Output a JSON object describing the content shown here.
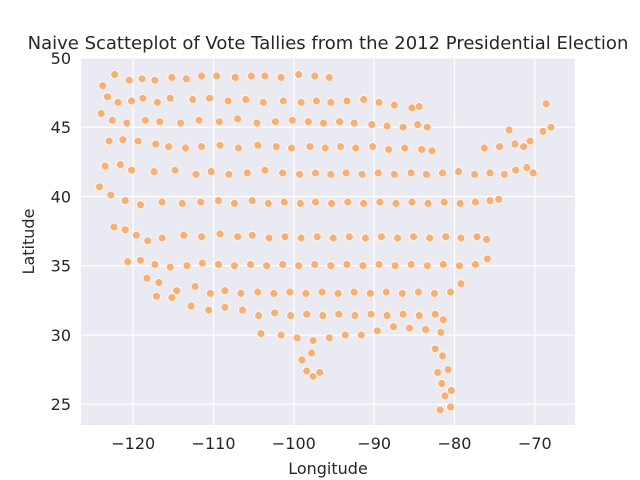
{
  "chart_data": {
    "type": "scatter",
    "title": "Naive Scatteplot of Vote Tallies from the 2012 Presidential Election",
    "xlabel": "Longitude",
    "ylabel": "Latitude",
    "xlim": [
      -126.5,
      -65.0
    ],
    "ylim": [
      23.5,
      50.0
    ],
    "xticks": [
      -120,
      -110,
      -100,
      -90,
      -80,
      -70
    ],
    "xtick_labels": [
      "−120",
      "−110",
      "−100",
      "−90",
      "−80",
      "−70"
    ],
    "yticks": [
      25,
      30,
      35,
      40,
      45,
      50
    ],
    "ytick_labels": [
      "25",
      "30",
      "35",
      "40",
      "45",
      "50"
    ],
    "grid": true,
    "style": "seaborn-darkgrid",
    "colors": {
      "background": "#eaeaf2",
      "grid": "#ffffff",
      "marker": "#fdae6b",
      "marker_edge": "#ffffff"
    },
    "series": [
      {
        "values": [
          [
            -123.8,
            48.0
          ],
          [
            -122.3,
            48.8
          ],
          [
            -120.5,
            48.4
          ],
          [
            -118.9,
            48.5
          ],
          [
            -117.3,
            48.4
          ],
          [
            -115.2,
            48.6
          ],
          [
            -113.4,
            48.5
          ],
          [
            -111.5,
            48.7
          ],
          [
            -109.6,
            48.7
          ],
          [
            -107.3,
            48.6
          ],
          [
            -105.3,
            48.7
          ],
          [
            -103.6,
            48.7
          ],
          [
            -101.6,
            48.6
          ],
          [
            -99.4,
            48.8
          ],
          [
            -97.4,
            48.7
          ],
          [
            -95.6,
            48.6
          ],
          [
            -123.2,
            47.2
          ],
          [
            -121.9,
            46.8
          ],
          [
            -120.2,
            46.9
          ],
          [
            -118.8,
            47.1
          ],
          [
            -117.0,
            46.8
          ],
          [
            -115.4,
            47.1
          ],
          [
            -112.6,
            47.0
          ],
          [
            -110.5,
            47.1
          ],
          [
            -108.2,
            46.9
          ],
          [
            -106.0,
            47.0
          ],
          [
            -103.8,
            46.8
          ],
          [
            -101.3,
            46.9
          ],
          [
            -99.1,
            46.8
          ],
          [
            -97.2,
            46.9
          ],
          [
            -95.4,
            46.8
          ],
          [
            -93.4,
            46.9
          ],
          [
            -91.3,
            47.0
          ],
          [
            -89.4,
            46.8
          ],
          [
            -87.5,
            46.6
          ],
          [
            -85.3,
            46.4
          ],
          [
            -84.4,
            46.5
          ],
          [
            -124.0,
            46.0
          ],
          [
            -122.6,
            45.5
          ],
          [
            -120.8,
            45.3
          ],
          [
            -118.5,
            45.5
          ],
          [
            -116.7,
            45.4
          ],
          [
            -114.1,
            45.3
          ],
          [
            -111.8,
            45.5
          ],
          [
            -109.3,
            45.4
          ],
          [
            -107.0,
            45.6
          ],
          [
            -104.6,
            45.3
          ],
          [
            -102.3,
            45.4
          ],
          [
            -100.2,
            45.5
          ],
          [
            -98.2,
            45.4
          ],
          [
            -96.3,
            45.3
          ],
          [
            -94.3,
            45.4
          ],
          [
            -92.5,
            45.3
          ],
          [
            -90.3,
            45.2
          ],
          [
            -88.4,
            45.1
          ],
          [
            -86.4,
            45.0
          ],
          [
            -84.6,
            45.2
          ],
          [
            -83.4,
            45.0
          ],
          [
            -123.0,
            44.0
          ],
          [
            -121.3,
            44.1
          ],
          [
            -119.4,
            44.0
          ],
          [
            -117.2,
            43.8
          ],
          [
            -115.6,
            43.6
          ],
          [
            -113.5,
            43.5
          ],
          [
            -111.5,
            43.6
          ],
          [
            -109.2,
            43.7
          ],
          [
            -106.9,
            43.5
          ],
          [
            -104.5,
            43.7
          ],
          [
            -102.2,
            43.6
          ],
          [
            -100.3,
            43.5
          ],
          [
            -98.0,
            43.6
          ],
          [
            -96.1,
            43.5
          ],
          [
            -94.2,
            43.6
          ],
          [
            -92.3,
            43.5
          ],
          [
            -90.2,
            43.6
          ],
          [
            -88.2,
            43.4
          ],
          [
            -86.2,
            43.5
          ],
          [
            -84.1,
            43.4
          ],
          [
            -82.8,
            43.3
          ],
          [
            -76.3,
            43.5
          ],
          [
            -74.4,
            43.6
          ],
          [
            -72.5,
            43.8
          ],
          [
            -70.6,
            44.0
          ],
          [
            -69.0,
            44.7
          ],
          [
            -68.0,
            45.0
          ],
          [
            -68.6,
            46.7
          ],
          [
            -71.4,
            43.6
          ],
          [
            -73.2,
            44.8
          ],
          [
            -123.5,
            42.2
          ],
          [
            -121.6,
            42.3
          ],
          [
            -120.2,
            41.9
          ],
          [
            -117.4,
            41.8
          ],
          [
            -114.8,
            41.9
          ],
          [
            -112.2,
            41.6
          ],
          [
            -110.3,
            41.8
          ],
          [
            -108.1,
            41.6
          ],
          [
            -105.8,
            41.7
          ],
          [
            -103.6,
            41.9
          ],
          [
            -101.4,
            41.7
          ],
          [
            -99.3,
            41.6
          ],
          [
            -97.3,
            41.7
          ],
          [
            -95.4,
            41.6
          ],
          [
            -93.5,
            41.7
          ],
          [
            -91.5,
            41.6
          ],
          [
            -89.5,
            41.7
          ],
          [
            -87.5,
            41.6
          ],
          [
            -85.4,
            41.7
          ],
          [
            -83.5,
            41.6
          ],
          [
            -81.5,
            41.7
          ],
          [
            -79.5,
            41.8
          ],
          [
            -77.5,
            41.6
          ],
          [
            -75.6,
            41.7
          ],
          [
            -73.8,
            41.6
          ],
          [
            -72.4,
            41.9
          ],
          [
            -71.0,
            42.1
          ],
          [
            -70.2,
            41.7
          ],
          [
            -124.2,
            40.7
          ],
          [
            -122.8,
            40.1
          ],
          [
            -121.0,
            39.7
          ],
          [
            -119.1,
            39.4
          ],
          [
            -116.4,
            39.6
          ],
          [
            -113.9,
            39.5
          ],
          [
            -111.6,
            39.6
          ],
          [
            -109.4,
            39.7
          ],
          [
            -107.4,
            39.5
          ],
          [
            -105.2,
            39.7
          ],
          [
            -103.2,
            39.5
          ],
          [
            -101.2,
            39.6
          ],
          [
            -99.2,
            39.5
          ],
          [
            -97.3,
            39.6
          ],
          [
            -95.3,
            39.5
          ],
          [
            -93.3,
            39.6
          ],
          [
            -91.3,
            39.5
          ],
          [
            -89.3,
            39.6
          ],
          [
            -87.3,
            39.5
          ],
          [
            -85.3,
            39.6
          ],
          [
            -83.3,
            39.5
          ],
          [
            -81.3,
            39.6
          ],
          [
            -79.3,
            39.5
          ],
          [
            -77.4,
            39.6
          ],
          [
            -75.6,
            39.7
          ],
          [
            -74.5,
            39.8
          ],
          [
            -122.4,
            37.8
          ],
          [
            -121.0,
            37.6
          ],
          [
            -119.6,
            37.2
          ],
          [
            -118.2,
            36.8
          ],
          [
            -116.4,
            37.0
          ],
          [
            -113.7,
            37.2
          ],
          [
            -111.5,
            37.1
          ],
          [
            -109.2,
            37.3
          ],
          [
            -107.0,
            37.1
          ],
          [
            -105.2,
            37.2
          ],
          [
            -103.1,
            37.0
          ],
          [
            -101.1,
            37.1
          ],
          [
            -99.1,
            37.0
          ],
          [
            -97.1,
            37.1
          ],
          [
            -95.1,
            37.0
          ],
          [
            -93.1,
            37.1
          ],
          [
            -91.1,
            37.0
          ],
          [
            -89.1,
            37.1
          ],
          [
            -87.1,
            37.0
          ],
          [
            -85.1,
            37.1
          ],
          [
            -83.1,
            37.0
          ],
          [
            -81.1,
            37.1
          ],
          [
            -79.2,
            37.0
          ],
          [
            -77.2,
            37.1
          ],
          [
            -76.0,
            36.9
          ],
          [
            -120.7,
            35.3
          ],
          [
            -119.1,
            35.4
          ],
          [
            -117.3,
            35.1
          ],
          [
            -115.4,
            34.9
          ],
          [
            -113.3,
            35.0
          ],
          [
            -111.4,
            35.2
          ],
          [
            -109.4,
            35.1
          ],
          [
            -107.4,
            35.0
          ],
          [
            -105.4,
            35.1
          ],
          [
            -103.4,
            35.0
          ],
          [
            -101.4,
            35.1
          ],
          [
            -99.4,
            35.0
          ],
          [
            -97.4,
            35.1
          ],
          [
            -95.4,
            35.0
          ],
          [
            -93.4,
            35.1
          ],
          [
            -91.4,
            35.0
          ],
          [
            -89.4,
            35.1
          ],
          [
            -87.4,
            35.0
          ],
          [
            -85.4,
            35.1
          ],
          [
            -83.4,
            35.0
          ],
          [
            -81.4,
            35.1
          ],
          [
            -79.4,
            35.0
          ],
          [
            -77.4,
            35.1
          ],
          [
            -75.9,
            35.5
          ],
          [
            -118.3,
            34.1
          ],
          [
            -116.8,
            33.8
          ],
          [
            -114.6,
            33.2
          ],
          [
            -112.3,
            33.5
          ],
          [
            -110.4,
            33.0
          ],
          [
            -108.6,
            33.2
          ],
          [
            -106.6,
            33.0
          ],
          [
            -104.5,
            33.1
          ],
          [
            -102.5,
            33.0
          ],
          [
            -100.5,
            33.1
          ],
          [
            -98.5,
            33.0
          ],
          [
            -96.5,
            33.1
          ],
          [
            -94.5,
            33.0
          ],
          [
            -92.5,
            33.1
          ],
          [
            -90.5,
            33.0
          ],
          [
            -88.5,
            33.1
          ],
          [
            -86.5,
            33.0
          ],
          [
            -84.5,
            33.1
          ],
          [
            -82.5,
            33.0
          ],
          [
            -80.5,
            33.1
          ],
          [
            -79.2,
            33.7
          ],
          [
            -117.1,
            32.8
          ],
          [
            -115.2,
            32.7
          ],
          [
            -112.8,
            32.1
          ],
          [
            -110.6,
            31.8
          ],
          [
            -108.6,
            32.0
          ],
          [
            -106.4,
            31.8
          ],
          [
            -104.4,
            31.4
          ],
          [
            -102.4,
            31.6
          ],
          [
            -100.4,
            31.4
          ],
          [
            -98.4,
            31.5
          ],
          [
            -96.4,
            31.4
          ],
          [
            -94.4,
            31.5
          ],
          [
            -92.4,
            31.4
          ],
          [
            -90.4,
            31.5
          ],
          [
            -88.4,
            31.4
          ],
          [
            -86.4,
            31.5
          ],
          [
            -84.4,
            31.4
          ],
          [
            -82.4,
            31.5
          ],
          [
            -81.4,
            31.1
          ],
          [
            -104.1,
            30.1
          ],
          [
            -101.6,
            30.0
          ],
          [
            -99.6,
            29.8
          ],
          [
            -97.6,
            29.6
          ],
          [
            -95.6,
            29.8
          ],
          [
            -93.6,
            30.0
          ],
          [
            -91.6,
            30.0
          ],
          [
            -89.6,
            30.3
          ],
          [
            -87.6,
            30.6
          ],
          [
            -85.6,
            30.5
          ],
          [
            -83.6,
            30.4
          ],
          [
            -81.7,
            30.2
          ],
          [
            -97.8,
            28.7
          ],
          [
            -99.0,
            28.2
          ],
          [
            -98.4,
            27.4
          ],
          [
            -97.6,
            27.0
          ],
          [
            -96.8,
            27.3
          ],
          [
            -82.4,
            29.0
          ],
          [
            -81.5,
            28.5
          ],
          [
            -82.1,
            27.3
          ],
          [
            -80.8,
            27.5
          ],
          [
            -81.6,
            26.5
          ],
          [
            -80.4,
            26.0
          ],
          [
            -81.2,
            25.6
          ],
          [
            -80.5,
            24.8
          ],
          [
            -81.8,
            24.6
          ]
        ]
      }
    ]
  }
}
